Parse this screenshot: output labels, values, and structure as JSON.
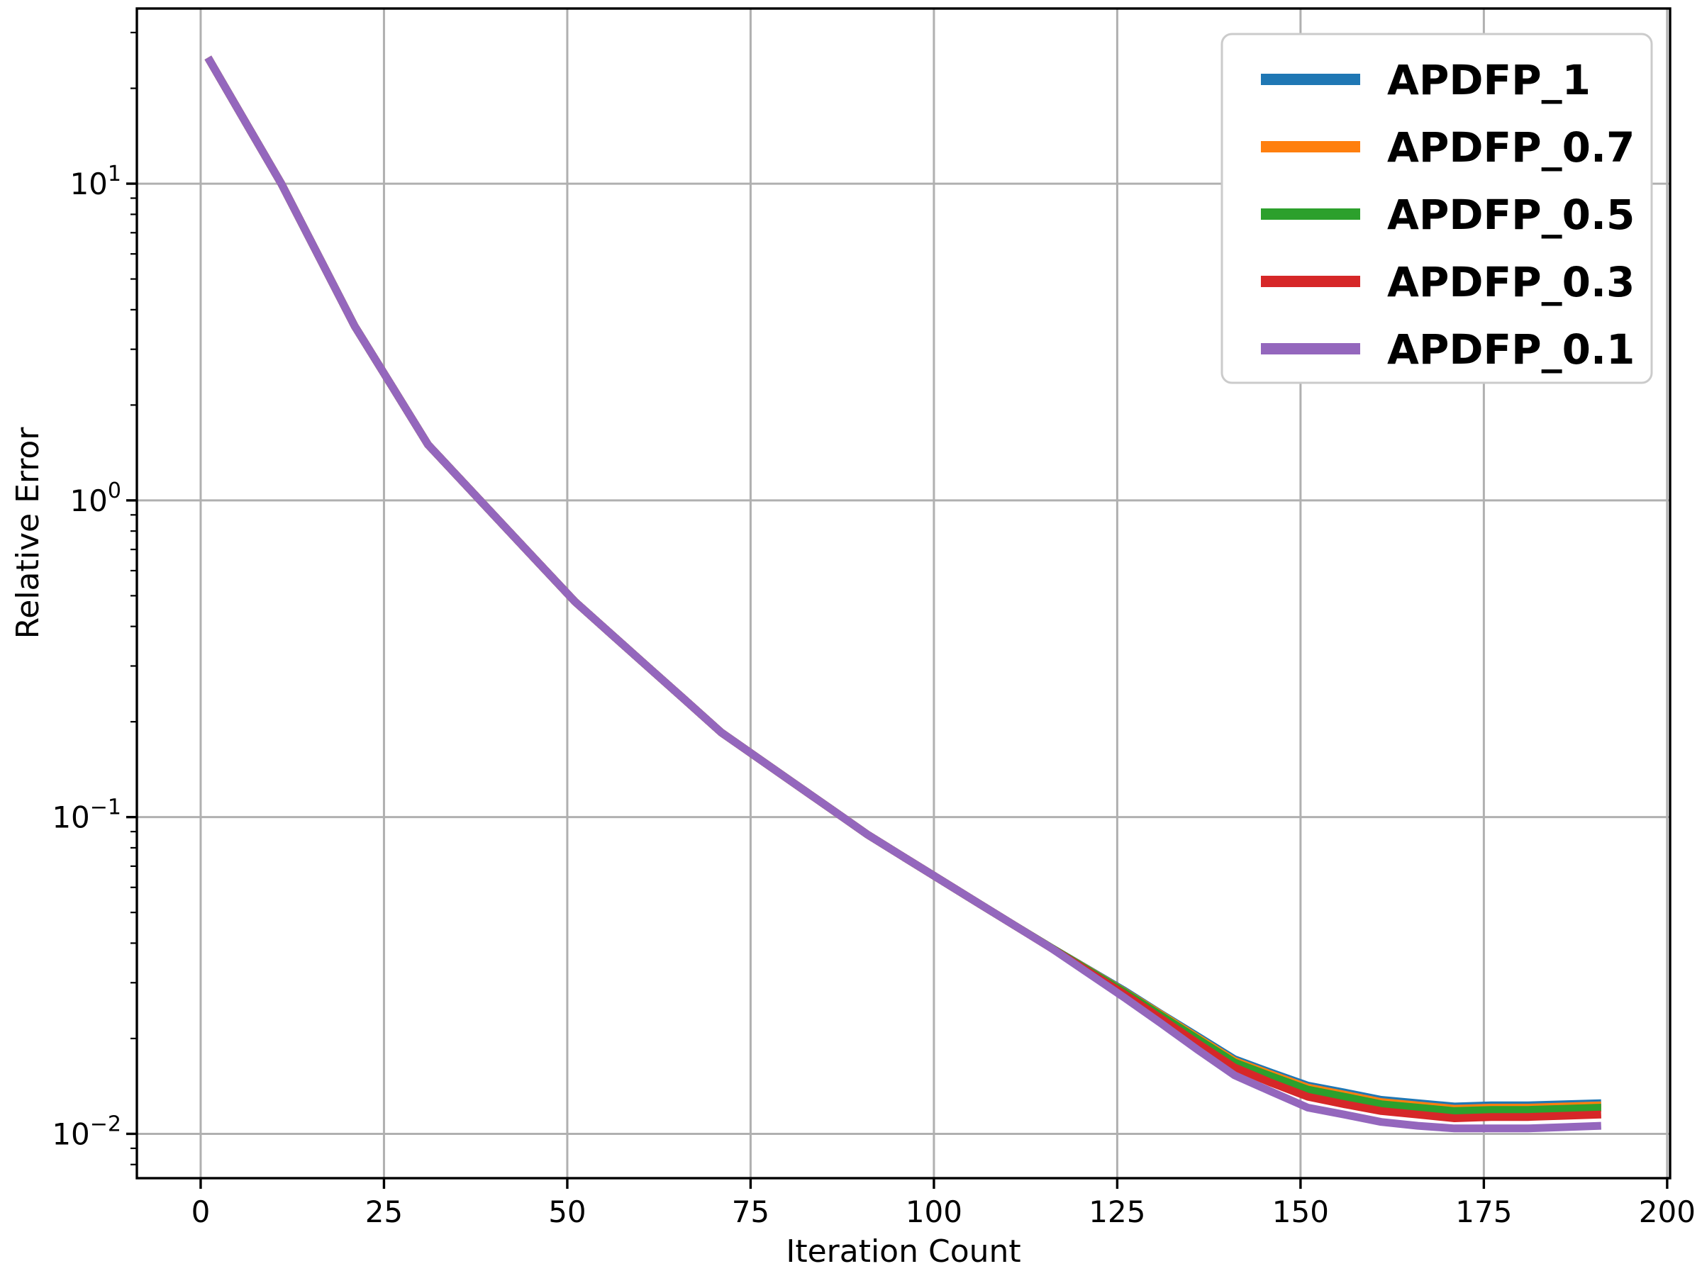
{
  "chart_data": {
    "type": "line",
    "title": "",
    "xlabel": "Iteration Count",
    "ylabel": "Relative Error",
    "x_ticks": [
      0,
      25,
      50,
      75,
      100,
      125,
      150,
      175,
      200
    ],
    "y_ticks": [
      10,
      1,
      0.1,
      0.01
    ],
    "xlim": [
      -8.7,
      200.4
    ],
    "ylim_log": [
      -2.14,
      1.553
    ],
    "grid": true,
    "grid_color": "#b0b0b0",
    "spine_color": "#000000",
    "legend_position": "upper right",
    "legend_border_color": "#cbcbcb",
    "legend_bg_color": "#ffffff",
    "x": [
      1,
      6,
      11,
      16,
      21,
      26,
      31,
      36,
      41,
      46,
      51,
      56,
      61,
      66,
      71,
      76,
      81,
      86,
      91,
      96,
      101,
      106,
      111,
      116,
      121,
      126,
      131,
      136,
      141,
      146,
      151,
      156,
      161,
      166,
      171,
      176,
      181,
      186,
      191
    ],
    "series": [
      {
        "name": "APDFP_1",
        "color": "#1f77b4",
        "values": [
          25.0,
          15.8,
          10.0,
          5.96,
          3.55,
          2.31,
          1.5,
          1.128,
          0.848,
          0.638,
          0.48,
          0.378,
          0.298,
          0.235,
          0.185,
          0.1536,
          0.1275,
          0.1059,
          0.0879,
          0.0745,
          0.0632,
          0.0536,
          0.0455,
          0.0387,
          0.0331,
          0.0283,
          0.0239,
          0.0203,
          0.0172,
          0.0156,
          0.0142,
          0.0135,
          0.0128,
          0.0125,
          0.0122,
          0.0123,
          0.0123,
          0.0124,
          0.0125
        ]
      },
      {
        "name": "APDFP_0.7",
        "color": "#ff7f0e",
        "values": [
          25.0,
          15.8,
          10.0,
          5.96,
          3.55,
          2.31,
          1.5,
          1.128,
          0.848,
          0.638,
          0.48,
          0.378,
          0.298,
          0.235,
          0.185,
          0.1536,
          0.1275,
          0.1059,
          0.0879,
          0.0745,
          0.0632,
          0.0536,
          0.0455,
          0.0387,
          0.033,
          0.0281,
          0.0238,
          0.0201,
          0.017,
          0.0154,
          0.014,
          0.0133,
          0.0126,
          0.0123,
          0.012,
          0.0121,
          0.0121,
          0.0122,
          0.0123
        ]
      },
      {
        "name": "APDFP_0.5",
        "color": "#2ca02c",
        "values": [
          25.0,
          15.8,
          10.0,
          5.96,
          3.55,
          2.31,
          1.5,
          1.128,
          0.848,
          0.638,
          0.48,
          0.378,
          0.298,
          0.235,
          0.185,
          0.1536,
          0.1275,
          0.1059,
          0.0879,
          0.0745,
          0.0632,
          0.0536,
          0.0455,
          0.0387,
          0.0329,
          0.028,
          0.0236,
          0.0199,
          0.0168,
          0.0152,
          0.0138,
          0.0131,
          0.0124,
          0.0121,
          0.0118,
          0.0119,
          0.0119,
          0.012,
          0.0121
        ]
      },
      {
        "name": "APDFP_0.3",
        "color": "#d62728",
        "values": [
          25.0,
          15.8,
          10.0,
          5.96,
          3.55,
          2.31,
          1.5,
          1.128,
          0.848,
          0.638,
          0.48,
          0.378,
          0.298,
          0.235,
          0.185,
          0.1536,
          0.1275,
          0.1059,
          0.0879,
          0.0745,
          0.0632,
          0.0536,
          0.0455,
          0.0386,
          0.0326,
          0.0276,
          0.0231,
          0.0193,
          0.0162,
          0.0145,
          0.0131,
          0.0124,
          0.0118,
          0.0115,
          0.0112,
          0.0113,
          0.0113,
          0.0114,
          0.0115
        ]
      },
      {
        "name": "APDFP_0.1",
        "color": "#9467bd",
        "values": [
          25.0,
          15.8,
          10.0,
          5.96,
          3.55,
          2.31,
          1.5,
          1.128,
          0.848,
          0.638,
          0.48,
          0.378,
          0.298,
          0.235,
          0.185,
          0.1536,
          0.1275,
          0.1059,
          0.0879,
          0.0745,
          0.0632,
          0.0536,
          0.0455,
          0.0386,
          0.0322,
          0.0269,
          0.0223,
          0.0184,
          0.0153,
          0.0136,
          0.0121,
          0.0115,
          0.0109,
          0.0106,
          0.0104,
          0.0104,
          0.0104,
          0.0105,
          0.0106
        ]
      }
    ]
  }
}
